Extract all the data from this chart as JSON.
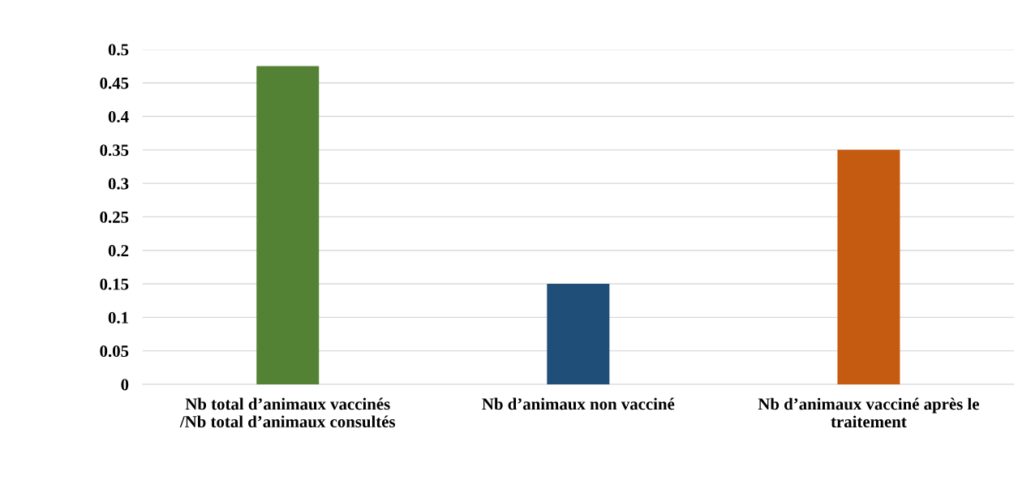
{
  "chart_data": {
    "type": "bar",
    "categories": [
      "Nb total d’animaux vaccinés\n/Nb total d’animaux consultés",
      "Nb d’animaux non vacciné",
      "Nb d’animaux vacciné après le\ntraitement"
    ],
    "values": [
      0.475,
      0.15,
      0.35
    ],
    "colors": [
      "#548235",
      "#1f4e79",
      "#c55a11"
    ],
    "ylim": [
      0,
      0.5
    ],
    "yticks": [
      0,
      0.05,
      0.1,
      0.15,
      0.2,
      0.25,
      0.3,
      0.35,
      0.4,
      0.45,
      0.5
    ],
    "grid": "y"
  }
}
